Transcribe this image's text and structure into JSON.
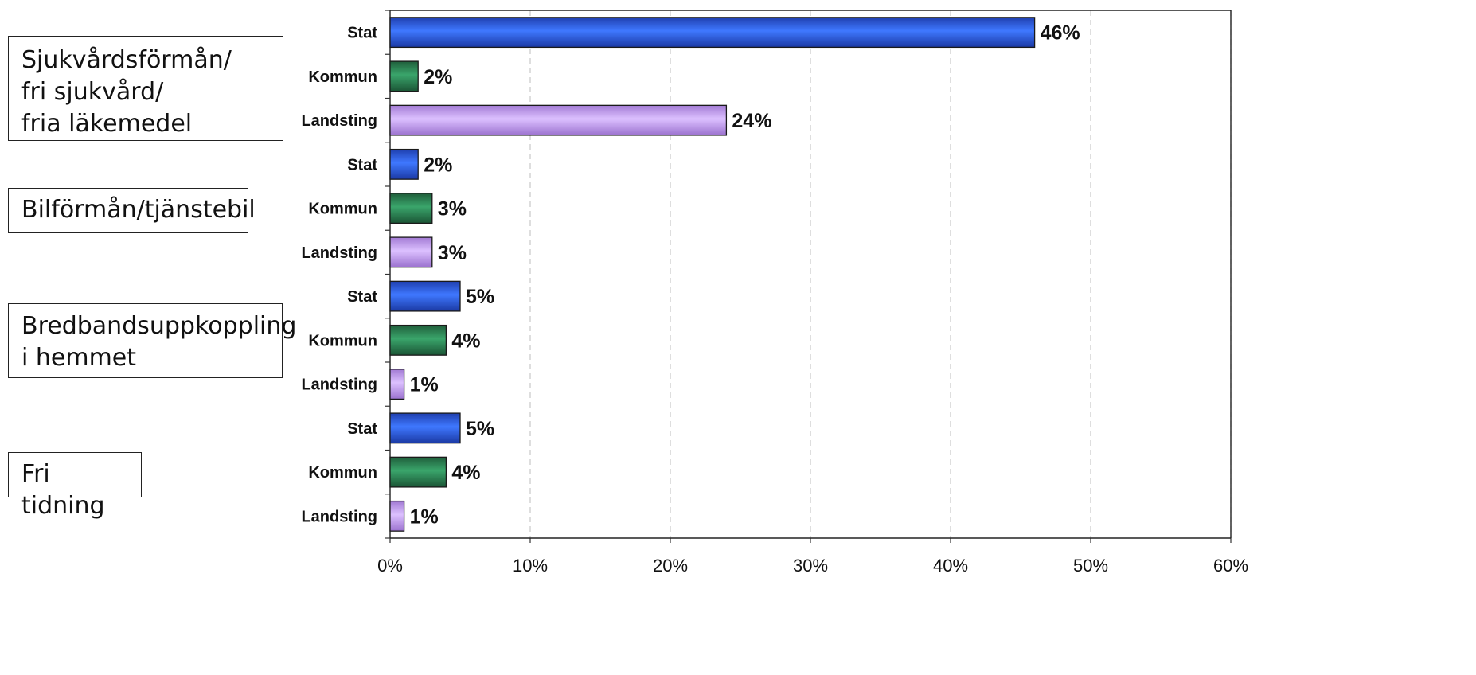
{
  "chart_data": {
    "type": "bar",
    "orientation": "horizontal",
    "groups": [
      {
        "label": "Sjukvårdsförmån/\nfri sjukvård/\nfria läkemedel",
        "rows": [
          {
            "category": "Stat",
            "value": 46,
            "label": "46%"
          },
          {
            "category": "Kommun",
            "value": 2,
            "label": "2%"
          },
          {
            "category": "Landsting",
            "value": 24,
            "label": "24%"
          }
        ]
      },
      {
        "label": "Bilförmån/tjänstebil",
        "rows": [
          {
            "category": "Stat",
            "value": 2,
            "label": "2%"
          },
          {
            "category": "Kommun",
            "value": 3,
            "label": "3%"
          },
          {
            "category": "Landsting",
            "value": 3,
            "label": "3%"
          }
        ]
      },
      {
        "label": "Bredbandsuppkoppling\ni hemmet",
        "rows": [
          {
            "category": "Stat",
            "value": 5,
            "label": "5%"
          },
          {
            "category": "Kommun",
            "value": 4,
            "label": "4%"
          },
          {
            "category": "Landsting",
            "value": 1,
            "label": "1%"
          }
        ]
      },
      {
        "label": "Fri tidning",
        "rows": [
          {
            "category": "Stat",
            "value": 5,
            "label": "5%"
          },
          {
            "category": "Kommun",
            "value": 4,
            "label": "4%"
          },
          {
            "category": "Landsting",
            "value": 1,
            "label": "1%"
          }
        ]
      }
    ],
    "xlim": [
      0,
      60
    ],
    "xticks": [
      "0%",
      "10%",
      "20%",
      "30%",
      "40%",
      "50%",
      "60%"
    ],
    "grid": "vertical-dashed",
    "colors": {
      "Stat": "#2f5fe6",
      "Kommun": "#2e8a57",
      "Landsting": "#c39af0"
    }
  }
}
